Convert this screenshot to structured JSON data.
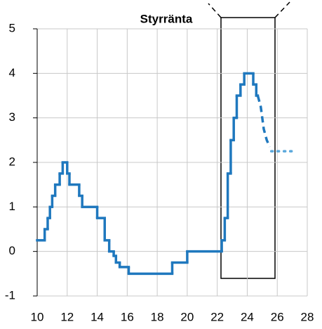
{
  "chart_data": {
    "type": "step-line",
    "title": "Styrränta",
    "xlim": [
      10,
      28
    ],
    "xticks": [
      10,
      12,
      14,
      16,
      18,
      20,
      22,
      24,
      26,
      28
    ],
    "ylim": [
      -1,
      5
    ],
    "yticks": [
      -1,
      0,
      1,
      2,
      3,
      4,
      5
    ],
    "grid": true,
    "series": [
      {
        "color": "#1f78be",
        "style": "solid",
        "step": true,
        "x": [
          10,
          10.5,
          10.7,
          10.85,
          11.0,
          11.2,
          11.5,
          11.7,
          12.0,
          12.15,
          12.8,
          13.0,
          14.0,
          14.5,
          14.8,
          15.1,
          15.25,
          15.5,
          16.1,
          19.0,
          20.0,
          22.3,
          22.5,
          22.7,
          22.9,
          23.1,
          23.3,
          23.55,
          23.8,
          24.4,
          24.6,
          24.7
        ],
        "values": [
          0.25,
          0.5,
          0.75,
          1.0,
          1.25,
          1.5,
          1.75,
          2.0,
          1.75,
          1.5,
          1.25,
          1.0,
          0.75,
          0.25,
          0.0,
          -0.1,
          -0.25,
          -0.35,
          -0.5,
          -0.25,
          0.0,
          0.25,
          0.75,
          1.75,
          2.5,
          3.0,
          3.5,
          3.75,
          4.0,
          3.75,
          3.5,
          3.5
        ]
      },
      {
        "color": "#1f78be",
        "style": "dashed",
        "step": false,
        "x": [
          24.7,
          24.9,
          25.1,
          25.3,
          25.5
        ],
        "values": [
          3.5,
          3.25,
          2.75,
          2.5,
          2.35
        ]
      },
      {
        "color": "#5aa8dc",
        "style": "dotted",
        "step": false,
        "x": [
          25.6,
          27.0
        ],
        "values": [
          2.25,
          2.25
        ]
      }
    ]
  }
}
